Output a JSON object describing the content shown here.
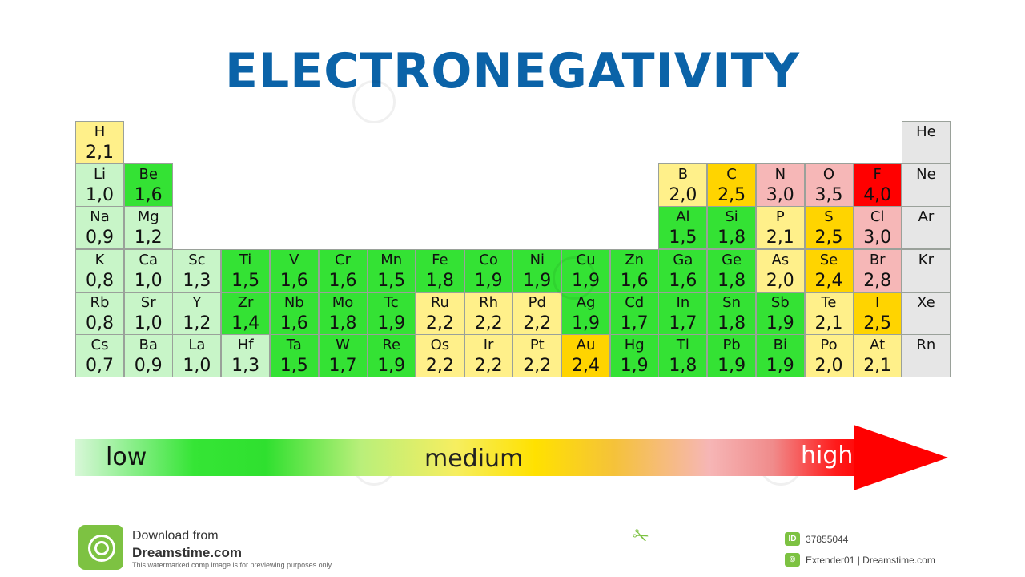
{
  "title": "ELECTRONEGATIVITY",
  "colors": {
    "title": "#0b63a8",
    "level_colors": {
      "pale_green": "#c8f5c8",
      "green": "#34e234",
      "light_yellow": "#fff08a",
      "yellow": "#ffd400",
      "pink": "#f6b7b7",
      "red": "#ff0000",
      "gray": "#e6e6e6"
    }
  },
  "elements": [
    {
      "symbol": "H",
      "value": "2,1",
      "row": 1,
      "col": 1,
      "level": "light_yellow"
    },
    {
      "symbol": "He",
      "value": "",
      "row": 1,
      "col": 18,
      "level": "gray"
    },
    {
      "symbol": "Li",
      "value": "1,0",
      "row": 2,
      "col": 1,
      "level": "pale_green"
    },
    {
      "symbol": "Be",
      "value": "1,6",
      "row": 2,
      "col": 2,
      "level": "green"
    },
    {
      "symbol": "B",
      "value": "2,0",
      "row": 2,
      "col": 13,
      "level": "light_yellow"
    },
    {
      "symbol": "C",
      "value": "2,5",
      "row": 2,
      "col": 14,
      "level": "yellow"
    },
    {
      "symbol": "N",
      "value": "3,0",
      "row": 2,
      "col": 15,
      "level": "pink"
    },
    {
      "symbol": "O",
      "value": "3,5",
      "row": 2,
      "col": 16,
      "level": "pink"
    },
    {
      "symbol": "F",
      "value": "4,0",
      "row": 2,
      "col": 17,
      "level": "red"
    },
    {
      "symbol": "Ne",
      "value": "",
      "row": 2,
      "col": 18,
      "level": "gray"
    },
    {
      "symbol": "Na",
      "value": "0,9",
      "row": 3,
      "col": 1,
      "level": "pale_green"
    },
    {
      "symbol": "Mg",
      "value": "1,2",
      "row": 3,
      "col": 2,
      "level": "pale_green"
    },
    {
      "symbol": "Al",
      "value": "1,5",
      "row": 3,
      "col": 13,
      "level": "green"
    },
    {
      "symbol": "Si",
      "value": "1,8",
      "row": 3,
      "col": 14,
      "level": "green"
    },
    {
      "symbol": "P",
      "value": "2,1",
      "row": 3,
      "col": 15,
      "level": "light_yellow"
    },
    {
      "symbol": "S",
      "value": "2,5",
      "row": 3,
      "col": 16,
      "level": "yellow"
    },
    {
      "symbol": "Cl",
      "value": "3,0",
      "row": 3,
      "col": 17,
      "level": "pink"
    },
    {
      "symbol": "Ar",
      "value": "",
      "row": 3,
      "col": 18,
      "level": "gray"
    },
    {
      "symbol": "K",
      "value": "0,8",
      "row": 4,
      "col": 1,
      "level": "pale_green"
    },
    {
      "symbol": "Ca",
      "value": "1,0",
      "row": 4,
      "col": 2,
      "level": "pale_green"
    },
    {
      "symbol": "Sc",
      "value": "1,3",
      "row": 4,
      "col": 3,
      "level": "pale_green"
    },
    {
      "symbol": "Ti",
      "value": "1,5",
      "row": 4,
      "col": 4,
      "level": "green"
    },
    {
      "symbol": "V",
      "value": "1,6",
      "row": 4,
      "col": 5,
      "level": "green"
    },
    {
      "symbol": "Cr",
      "value": "1,6",
      "row": 4,
      "col": 6,
      "level": "green"
    },
    {
      "symbol": "Mn",
      "value": "1,5",
      "row": 4,
      "col": 7,
      "level": "green"
    },
    {
      "symbol": "Fe",
      "value": "1,8",
      "row": 4,
      "col": 8,
      "level": "green"
    },
    {
      "symbol": "Co",
      "value": "1,9",
      "row": 4,
      "col": 9,
      "level": "green"
    },
    {
      "symbol": "Ni",
      "value": "1,9",
      "row": 4,
      "col": 10,
      "level": "green"
    },
    {
      "symbol": "Cu",
      "value": "1,9",
      "row": 4,
      "col": 11,
      "level": "green"
    },
    {
      "symbol": "Zn",
      "value": "1,6",
      "row": 4,
      "col": 12,
      "level": "green"
    },
    {
      "symbol": "Ga",
      "value": "1,6",
      "row": 4,
      "col": 13,
      "level": "green"
    },
    {
      "symbol": "Ge",
      "value": "1,8",
      "row": 4,
      "col": 14,
      "level": "green"
    },
    {
      "symbol": "As",
      "value": "2,0",
      "row": 4,
      "col": 15,
      "level": "light_yellow"
    },
    {
      "symbol": "Se",
      "value": "2,4",
      "row": 4,
      "col": 16,
      "level": "yellow"
    },
    {
      "symbol": "Br",
      "value": "2,8",
      "row": 4,
      "col": 17,
      "level": "pink"
    },
    {
      "symbol": "Kr",
      "value": "",
      "row": 4,
      "col": 18,
      "level": "gray"
    },
    {
      "symbol": "Rb",
      "value": "0,8",
      "row": 5,
      "col": 1,
      "level": "pale_green"
    },
    {
      "symbol": "Sr",
      "value": "1,0",
      "row": 5,
      "col": 2,
      "level": "pale_green"
    },
    {
      "symbol": "Y",
      "value": "1,2",
      "row": 5,
      "col": 3,
      "level": "pale_green"
    },
    {
      "symbol": "Zr",
      "value": "1,4",
      "row": 5,
      "col": 4,
      "level": "green"
    },
    {
      "symbol": "Nb",
      "value": "1,6",
      "row": 5,
      "col": 5,
      "level": "green"
    },
    {
      "symbol": "Mo",
      "value": "1,8",
      "row": 5,
      "col": 6,
      "level": "green"
    },
    {
      "symbol": "Tc",
      "value": "1,9",
      "row": 5,
      "col": 7,
      "level": "green"
    },
    {
      "symbol": "Ru",
      "value": "2,2",
      "row": 5,
      "col": 8,
      "level": "light_yellow"
    },
    {
      "symbol": "Rh",
      "value": "2,2",
      "row": 5,
      "col": 9,
      "level": "light_yellow"
    },
    {
      "symbol": "Pd",
      "value": "2,2",
      "row": 5,
      "col": 10,
      "level": "light_yellow"
    },
    {
      "symbol": "Ag",
      "value": "1,9",
      "row": 5,
      "col": 11,
      "level": "green"
    },
    {
      "symbol": "Cd",
      "value": "1,7",
      "row": 5,
      "col": 12,
      "level": "green"
    },
    {
      "symbol": "In",
      "value": "1,7",
      "row": 5,
      "col": 13,
      "level": "green"
    },
    {
      "symbol": "Sn",
      "value": "1,8",
      "row": 5,
      "col": 14,
      "level": "green"
    },
    {
      "symbol": "Sb",
      "value": "1,9",
      "row": 5,
      "col": 15,
      "level": "green"
    },
    {
      "symbol": "Te",
      "value": "2,1",
      "row": 5,
      "col": 16,
      "level": "light_yellow"
    },
    {
      "symbol": "I",
      "value": "2,5",
      "row": 5,
      "col": 17,
      "level": "yellow"
    },
    {
      "symbol": "Xe",
      "value": "",
      "row": 5,
      "col": 18,
      "level": "gray"
    },
    {
      "symbol": "Cs",
      "value": "0,7",
      "row": 6,
      "col": 1,
      "level": "pale_green"
    },
    {
      "symbol": "Ba",
      "value": "0,9",
      "row": 6,
      "col": 2,
      "level": "pale_green"
    },
    {
      "symbol": "La",
      "value": "1,0",
      "row": 6,
      "col": 3,
      "level": "pale_green"
    },
    {
      "symbol": "Hf",
      "value": "1,3",
      "row": 6,
      "col": 4,
      "level": "pale_green"
    },
    {
      "symbol": "Ta",
      "value": "1,5",
      "row": 6,
      "col": 5,
      "level": "green"
    },
    {
      "symbol": "W",
      "value": "1,7",
      "row": 6,
      "col": 6,
      "level": "green"
    },
    {
      "symbol": "Re",
      "value": "1,9",
      "row": 6,
      "col": 7,
      "level": "green"
    },
    {
      "symbol": "Os",
      "value": "2,2",
      "row": 6,
      "col": 8,
      "level": "light_yellow"
    },
    {
      "symbol": "Ir",
      "value": "2,2",
      "row": 6,
      "col": 9,
      "level": "light_yellow"
    },
    {
      "symbol": "Pt",
      "value": "2,2",
      "row": 6,
      "col": 10,
      "level": "light_yellow"
    },
    {
      "symbol": "Au",
      "value": "2,4",
      "row": 6,
      "col": 11,
      "level": "yellow"
    },
    {
      "symbol": "Hg",
      "value": "1,9",
      "row": 6,
      "col": 12,
      "level": "green"
    },
    {
      "symbol": "Tl",
      "value": "1,8",
      "row": 6,
      "col": 13,
      "level": "green"
    },
    {
      "symbol": "Pb",
      "value": "1,9",
      "row": 6,
      "col": 14,
      "level": "green"
    },
    {
      "symbol": "Bi",
      "value": "1,9",
      "row": 6,
      "col": 15,
      "level": "green"
    },
    {
      "symbol": "Po",
      "value": "2,0",
      "row": 6,
      "col": 16,
      "level": "light_yellow"
    },
    {
      "symbol": "At",
      "value": "2,1",
      "row": 6,
      "col": 17,
      "level": "light_yellow"
    },
    {
      "symbol": "Rn",
      "value": "",
      "row": 6,
      "col": 18,
      "level": "gray"
    }
  ],
  "scale": {
    "low_label": "low",
    "medium_label": "medium",
    "high_label": "high"
  },
  "footer": {
    "download_line1": "Download from",
    "download_line2": "Dreamstime.com",
    "download_line3": "This watermarked comp image is for previewing purposes only.",
    "id_badge": "ID",
    "image_id": "37855044",
    "author": "Extender01 | Dreamstime.com"
  }
}
